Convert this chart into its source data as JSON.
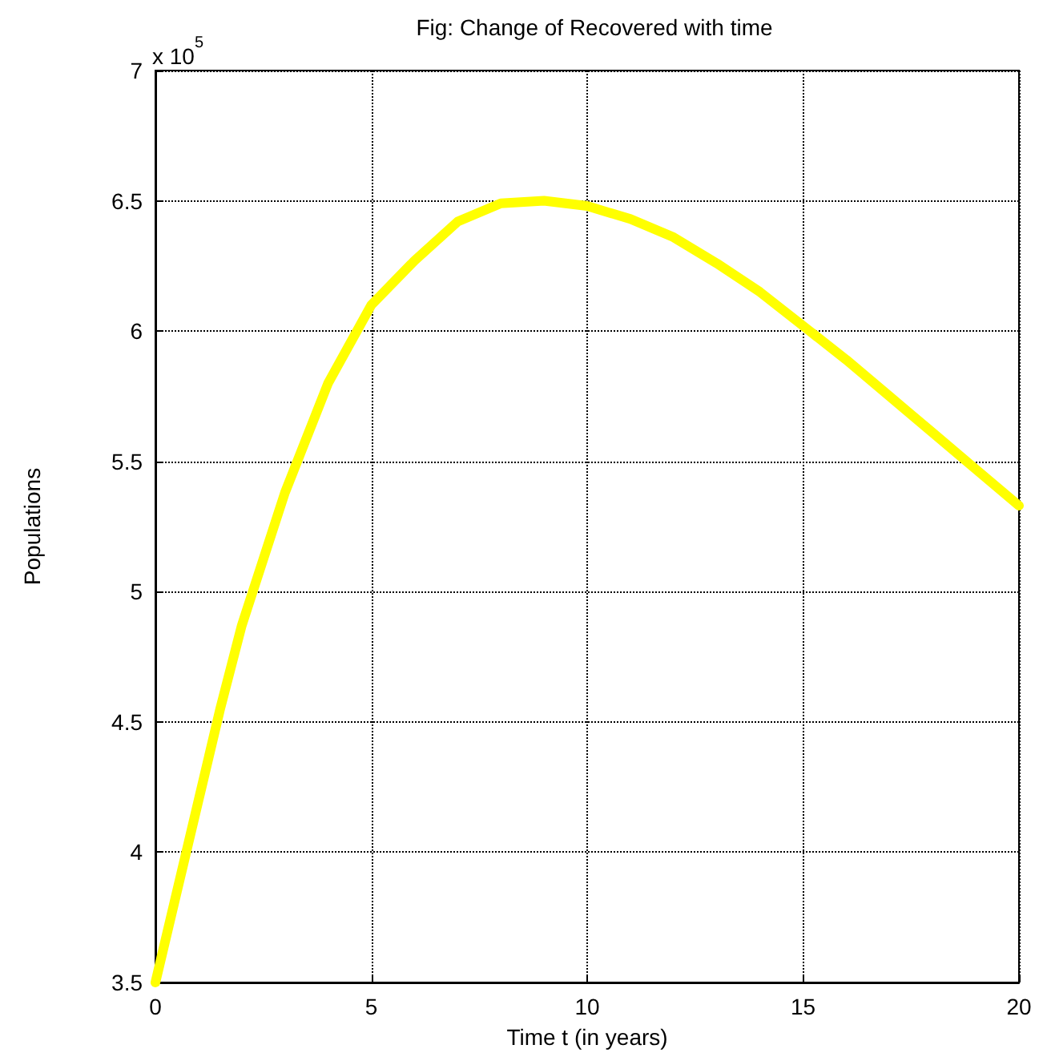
{
  "chart_data": {
    "type": "line",
    "title": "Fig: Change of Recovered with time",
    "xlabel": "Time t (in years)",
    "ylabel": "Populations",
    "annotations": [
      "x 10$^{5}$"
    ],
    "x": [
      0,
      0.5,
      1,
      1.5,
      2,
      3,
      4,
      5,
      6,
      7,
      8,
      9,
      10,
      11,
      12,
      13,
      14,
      15,
      16,
      17,
      18,
      19,
      20
    ],
    "series": [
      {
        "color": "#ffff00",
        "values": [
          3.5,
          3.85,
          4.2,
          4.55,
          4.87,
          5.38,
          5.8,
          6.1,
          6.27,
          6.42,
          6.49,
          6.5,
          6.48,
          6.43,
          6.36,
          6.26,
          6.15,
          6.02,
          5.89,
          5.75,
          5.61,
          5.47,
          5.33
        ]
      }
    ],
    "xlim": [
      0,
      20
    ],
    "xticks": [
      0,
      5,
      10,
      15,
      20
    ],
    "ylim": [
      3.5,
      7
    ],
    "yticks": [
      3.5,
      4,
      4.5,
      5,
      5.5,
      6,
      6.5,
      7
    ],
    "grid": true,
    "marker": "none",
    "line_style": "solid"
  }
}
